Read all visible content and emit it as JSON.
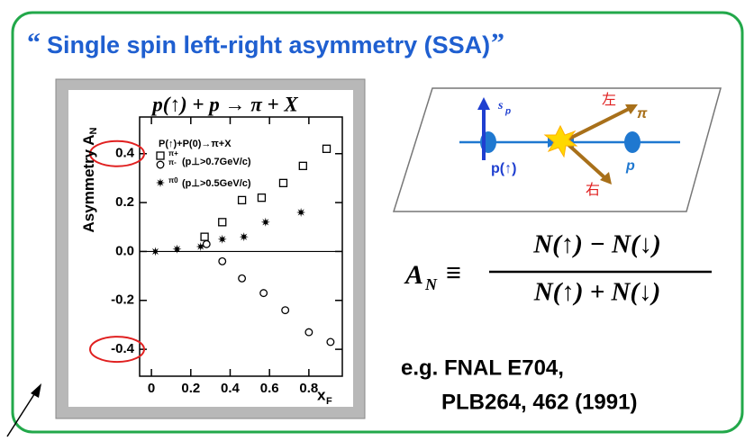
{
  "title": "Single spin left-right asymmetry (SSA)",
  "chart_data": {
    "type": "scatter",
    "title": "p(↑) + p → π + X",
    "ylabel": {
      "main": "Asymmetry A",
      "sub": "N"
    },
    "xlabel": {
      "main": "x",
      "sub": "F"
    },
    "legend_title": "P(↑)+P(0)→π+X",
    "legend_conditions": [
      "(p⊥>0.7GeV/c)",
      "(p⊥>0.5GeV/c)"
    ],
    "xlim": [
      -0.06,
      0.97
    ],
    "ylim": [
      -0.51,
      0.55
    ],
    "xticks": [
      0,
      0.2,
      0.4,
      0.6,
      0.8
    ],
    "yticks": [
      -0.4,
      -0.2,
      {
        "value": 0,
        "label": "0.0"
      },
      0.2,
      0.4
    ],
    "zero_line": 0,
    "series": [
      {
        "name": "π+",
        "marker": "square",
        "color": "#000000",
        "x": [
          0.27,
          0.36,
          0.46,
          0.56,
          0.67,
          0.77,
          0.89
        ],
        "values": [
          0.06,
          0.12,
          0.21,
          0.22,
          0.28,
          0.35,
          0.42
        ]
      },
      {
        "name": "π-",
        "marker": "circle",
        "color": "#000000",
        "x": [
          0.28,
          0.36,
          0.46,
          0.57,
          0.68,
          0.8,
          0.91
        ],
        "values": [
          0.03,
          -0.04,
          -0.11,
          -0.17,
          -0.24,
          -0.33,
          -0.37
        ]
      },
      {
        "name": "π0",
        "marker": "star",
        "color": "#000000",
        "x": [
          0.02,
          0.13,
          0.25,
          0.36,
          0.47,
          0.58,
          0.76
        ],
        "values": [
          0.0,
          0.01,
          0.02,
          0.05,
          0.06,
          0.12,
          0.16
        ]
      }
    ],
    "highlight_color": "#e02020"
  },
  "diagram": {
    "spin": "s",
    "spin_sub": "p",
    "left": "左",
    "right": "右",
    "pion": "π",
    "beam_polarized": "p(↑)",
    "beam_target": "p"
  },
  "formula": {
    "lhs": "A",
    "lhs_sub": "N",
    "equiv": "≡",
    "numerator": "N(↑) − N(↓)",
    "denominator": "N(↑) + N(↓)"
  },
  "reference": [
    "e.g. FNAL E704,",
    "PLB264, 462 (1991)"
  ]
}
